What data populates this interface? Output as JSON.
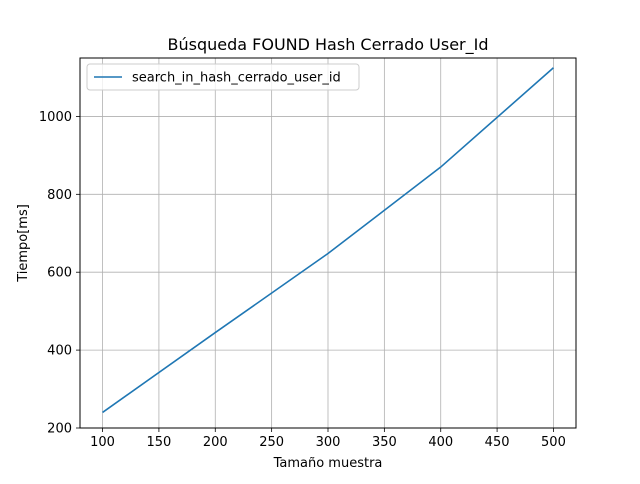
{
  "chart_data": {
    "type": "line",
    "title": "Búsqueda FOUND Hash Cerrado User_Id",
    "xlabel": "Tamaño muestra",
    "ylabel": "Tiempo[ms]",
    "xlim": [
      80,
      520
    ],
    "ylim": [
      200,
      1150
    ],
    "xticks": [
      100,
      150,
      200,
      250,
      300,
      350,
      400,
      450,
      500
    ],
    "yticks": [
      200,
      400,
      600,
      800,
      1000
    ],
    "grid": true,
    "legend_position": "top-left",
    "series": [
      {
        "name": "search_in_hash_cerrado_user_id",
        "color": "#1f77b4",
        "x": [
          100,
          200,
          300,
          400,
          500
        ],
        "y": [
          240,
          445,
          648,
          870,
          1125
        ]
      }
    ]
  }
}
